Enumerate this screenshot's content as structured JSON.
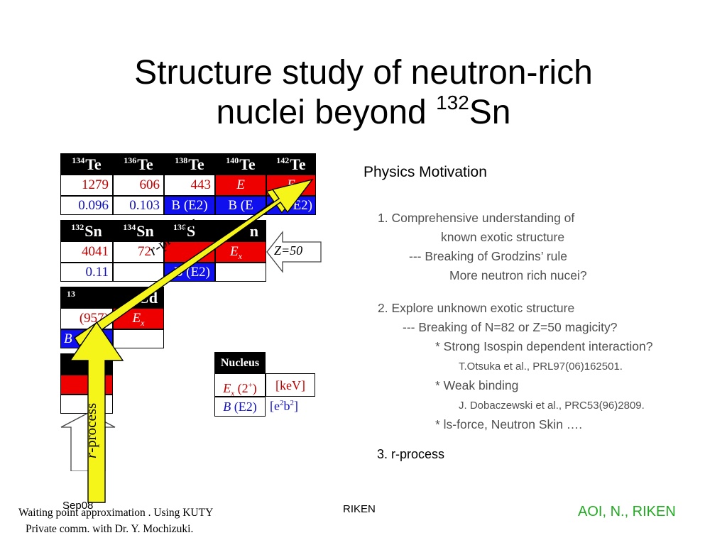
{
  "title": {
    "line1": "Structure study of neutron-rich",
    "line2_text": "nuclei beyond ",
    "line2_sup": "132",
    "line2_end": "Sn"
  },
  "chart_table": {
    "te_row": {
      "headers": [
        {
          "mass": "134",
          "el": "Te"
        },
        {
          "mass": "136",
          "el": "Te"
        },
        {
          "mass": "138",
          "el": "Te"
        },
        {
          "mass": "140",
          "el": "Te"
        },
        {
          "mass": "142",
          "el": "Te"
        }
      ],
      "ex": [
        "1279",
        "606",
        "443",
        "E",
        "E"
      ],
      "be2": [
        "0.096",
        "0.103",
        "B (E2)",
        "B (E",
        "E2)"
      ]
    },
    "sn_row": {
      "headers": [
        {
          "mass": "132",
          "el": "Sn"
        },
        {
          "mass": "134",
          "el": "Sn"
        },
        {
          "mass": "136",
          "el": "S"
        },
        {
          "mass": "",
          "el": "n"
        }
      ],
      "ex": [
        "4041",
        "72",
        "",
        "E"
      ],
      "ex_sub": "x",
      "be2": [
        "0.11",
        "",
        "B (E2)",
        ""
      ]
    },
    "cd_row": {
      "headers": [
        {
          "mass": "13",
          "el": ""
        },
        {
          "mass": "",
          "el": "Cd"
        }
      ],
      "ex": [
        "(957)",
        "E"
      ],
      "ex_sub": "x",
      "be2": [
        "B",
        ")"
      ]
    },
    "z50_label": "Z=50"
  },
  "legend": {
    "header": "Nucleus",
    "ex_label": "E",
    "ex_sub": "x",
    "ex_tail": " (2",
    "ex_sup": "+",
    "ex_close": ")",
    "be_label": "B",
    "be_tail": " (E2)",
    "kev": "[keV]",
    "e2b2_pre": "[e",
    "e2b2_sup1": "2",
    "e2b2_mid": "b",
    "e2b2_sup2": "2",
    "e2b2_close": "]"
  },
  "arrows": {
    "diag_label_italic": "r",
    "diag_label_rest": "-process",
    "vert_label_italic": "r",
    "vert_label_rest": "-process"
  },
  "motivation": {
    "heading": "Physics Motivation",
    "p1_line1": "1. Comprehensive understanding of",
    "p1_line2": "known exotic structure",
    "p1_line3": "--- Breaking of Grodzins’ rule",
    "p1_line4": "More neutron rich nucei?",
    "p2_line1": "2. Explore unknown exotic structure",
    "p2_line2": "--- Breaking of N=82 or Z=50 magicity?",
    "p2_line3": "* Strong Isospin dependent interaction?",
    "p2_ref1": "T.Otsuka et al., PRL97(06)162501.",
    "p2_line4": "* Weak binding",
    "p2_ref2": "J. Dobaczewski et al., PRC53(96)2809.",
    "p2_line5": "* ls-force, Neutron Skin ….",
    "p3": "3. r-process"
  },
  "footer": {
    "note_line1": "Waiting point approximation . Using KUTY",
    "note_line2": "Private comm. with Dr. Y. Mochizuki.",
    "date": "Sep08",
    "center": "RIKEN",
    "right": "AOI, N., RIKEN"
  },
  "colors": {
    "red": "#ee0000",
    "blue": "#1010ee",
    "yellow": "#f5f51a",
    "green": "#22aa22",
    "gray_text": "#505050"
  }
}
